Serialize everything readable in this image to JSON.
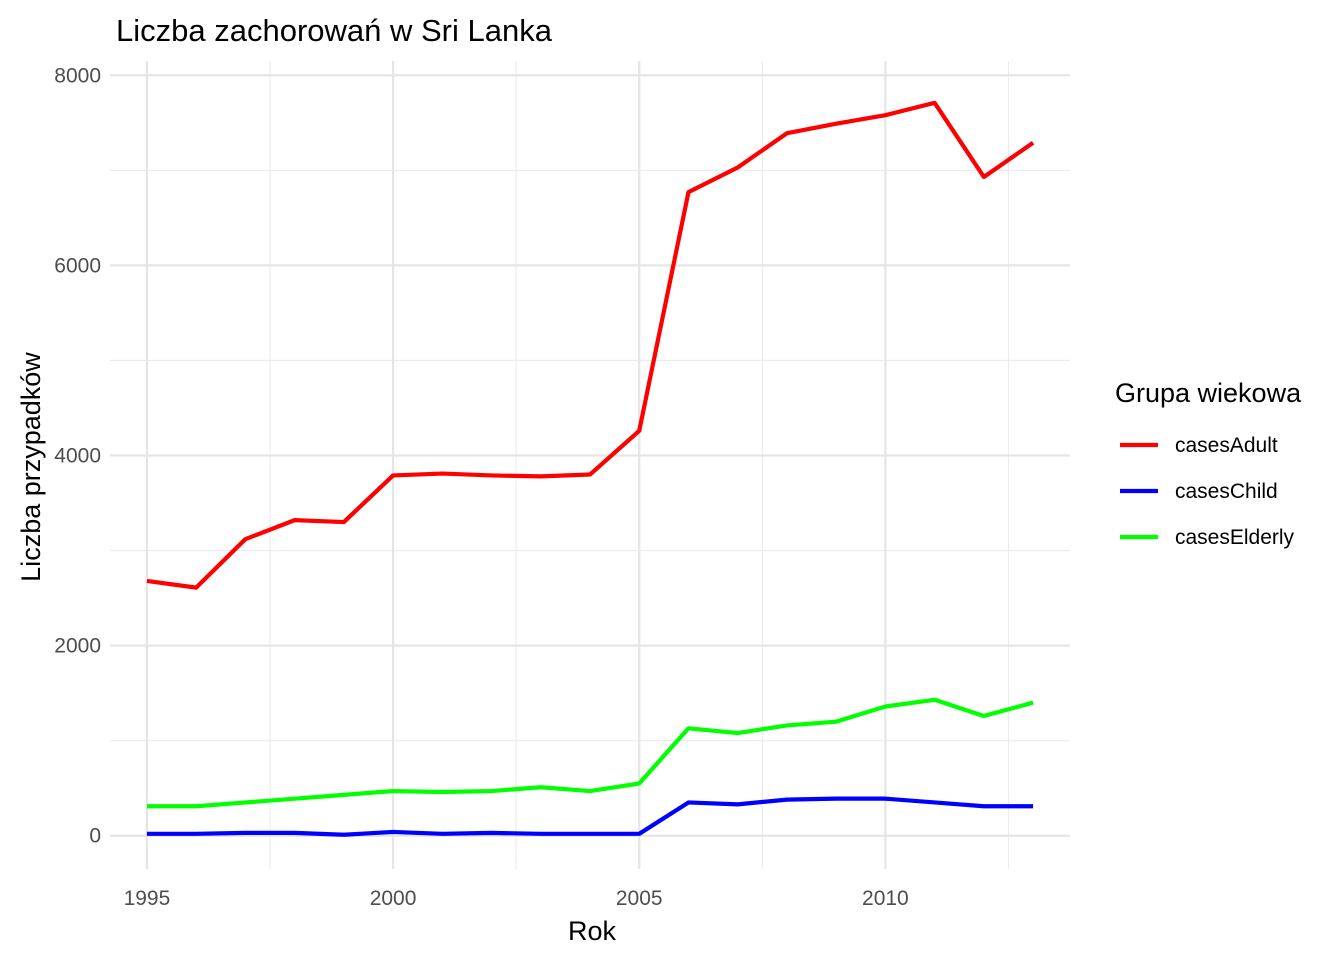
{
  "chart_data": {
    "type": "line",
    "title": "Liczba zachorowań w Sri Lanka",
    "xlabel": "Rok",
    "ylabel": "Liczba przypadków",
    "xlim": [
      1994.25,
      2013.75
    ],
    "ylim": [
      -350,
      8150
    ],
    "x_ticks": [
      1995,
      2000,
      2005,
      2010
    ],
    "y_ticks": [
      0,
      2000,
      4000,
      6000,
      8000
    ],
    "grid": true,
    "legend": {
      "title": "Grupa wiekowa",
      "position": "right"
    },
    "x": [
      1995,
      1996,
      1997,
      1998,
      1999,
      2000,
      2001,
      2002,
      2003,
      2004,
      2005,
      2006,
      2007,
      2008,
      2009,
      2010,
      2011,
      2012,
      2013
    ],
    "series": [
      {
        "name": "casesAdult",
        "color": "#ff0000",
        "values": [
          2680,
          2610,
          3120,
          3320,
          3300,
          3790,
          3810,
          3790,
          3780,
          3800,
          4260,
          6770,
          7030,
          7390,
          7490,
          7580,
          7710,
          6930,
          7290
        ]
      },
      {
        "name": "casesChild",
        "color": "#0000ff",
        "values": [
          20,
          20,
          30,
          30,
          10,
          40,
          20,
          30,
          20,
          20,
          20,
          350,
          330,
          380,
          390,
          390,
          350,
          310,
          310
        ]
      },
      {
        "name": "casesElderly",
        "color": "#00ff00",
        "values": [
          310,
          310,
          350,
          390,
          430,
          470,
          460,
          470,
          510,
          470,
          550,
          1130,
          1080,
          1160,
          1200,
          1360,
          1430,
          1260,
          1400
        ]
      }
    ]
  }
}
